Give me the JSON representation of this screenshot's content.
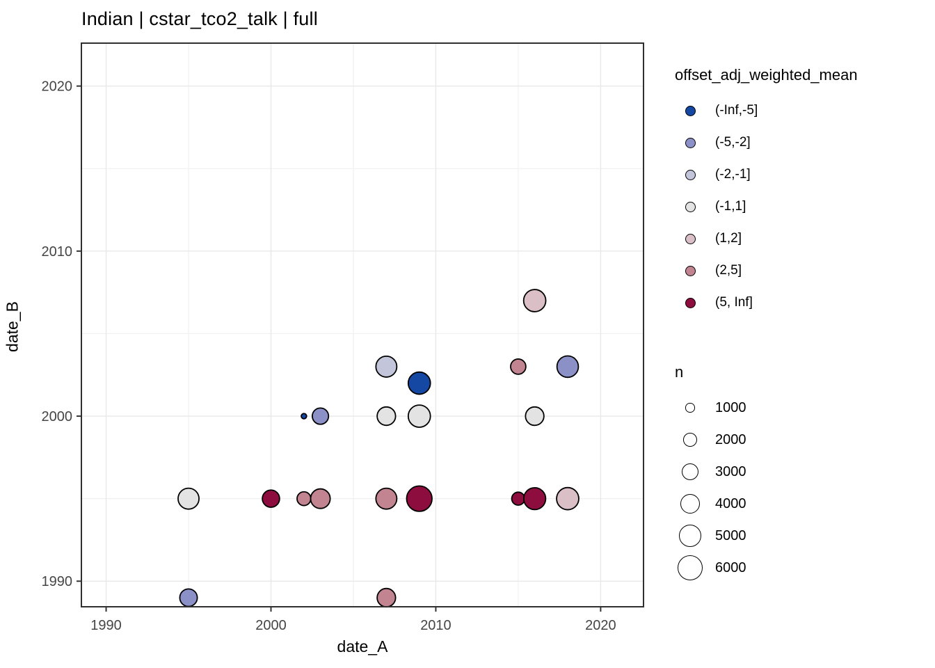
{
  "title": "Indian | cstar_tco2_talk | full",
  "axes": {
    "x": {
      "label": "date_A",
      "major_ticks": [
        1990,
        2000,
        2010,
        2020
      ],
      "minor_ticks": [
        1995,
        2005,
        2015
      ],
      "domain": [
        1988.5,
        2022.6
      ]
    },
    "y": {
      "label": "date_B",
      "major_ticks": [
        1990,
        2000,
        2010,
        2020
      ],
      "minor_ticks": [
        1995,
        2005,
        2015
      ],
      "domain": [
        1988.45,
        2022.6
      ]
    }
  },
  "colors": {
    "background": "#ffffff",
    "panel_border": "#2f2f2f",
    "grid_major": "#e8e8e8",
    "grid_minor": "#f0f0f0",
    "tick_mark": "#333333",
    "tick_label": "#454545",
    "point_stroke": "#000000",
    "palette": {
      "(-Inf,-5]": "#1548a2",
      "(-5,-2]": "#8b90c6",
      "(-2,-1]": "#c3c6db",
      "(-1,1]": "#e4e3e3",
      "(1,2]": "#dbbfc7",
      "(2,5]": "#c28490",
      "(5, Inf]": "#8d0d3e"
    }
  },
  "legend_color": {
    "title": "offset_adj_weighted_mean",
    "items": [
      {
        "label": "(-Inf,-5]",
        "color": "#1548a2"
      },
      {
        "label": "(-5,-2]",
        "color": "#8b90c6"
      },
      {
        "label": "(-2,-1]",
        "color": "#c3c6db"
      },
      {
        "label": "(-1,1]",
        "color": "#e4e3e3"
      },
      {
        "label": "(1,2]",
        "color": "#dbbfc7"
      },
      {
        "label": "(2,5]",
        "color": "#c28490"
      },
      {
        "label": "(5, Inf]",
        "color": "#8d0d3e"
      }
    ]
  },
  "legend_size": {
    "title": "n",
    "items": [
      {
        "label": "1000",
        "n": 1000
      },
      {
        "label": "2000",
        "n": 2000
      },
      {
        "label": "3000",
        "n": 3000
      },
      {
        "label": "4000",
        "n": 4000
      },
      {
        "label": "5000",
        "n": 5000
      },
      {
        "label": "6000",
        "n": 6000
      }
    ]
  },
  "chart_data": {
    "type": "scatter",
    "title": "Indian | cstar_tco2_talk | full",
    "xlabel": "date_A",
    "ylabel": "date_B",
    "x_domain": [
      1988.5,
      2022.6
    ],
    "y_domain": [
      1988.45,
      2022.6
    ],
    "x_ticks": [
      1990,
      2000,
      2010,
      2020
    ],
    "y_ticks": [
      1990,
      2000,
      2010,
      2020
    ],
    "grid": true,
    "legend_position": "right",
    "color_variable": "offset_adj_weighted_mean",
    "size_variable": "n",
    "points": [
      {
        "date_A": 1995,
        "date_B": 1989,
        "n": 3100,
        "offset_bin": "(-5,-2]"
      },
      {
        "date_A": 2007,
        "date_B": 1989,
        "n": 3400,
        "offset_bin": "(2,5]"
      },
      {
        "date_A": 1995,
        "date_B": 1995,
        "n": 4300,
        "offset_bin": "(-1,1]"
      },
      {
        "date_A": 2000,
        "date_B": 1995,
        "n": 3000,
        "offset_bin": "(5, Inf]"
      },
      {
        "date_A": 2002,
        "date_B": 1995,
        "n": 2000,
        "offset_bin": "(2,5]"
      },
      {
        "date_A": 2003,
        "date_B": 1995,
        "n": 3800,
        "offset_bin": "(2,5]"
      },
      {
        "date_A": 2007,
        "date_B": 1995,
        "n": 4300,
        "offset_bin": "(2,5]"
      },
      {
        "date_A": 2009,
        "date_B": 1995,
        "n": 6200,
        "offset_bin": "(5, Inf]"
      },
      {
        "date_A": 2015,
        "date_B": 1995,
        "n": 1800,
        "offset_bin": "(5, Inf]"
      },
      {
        "date_A": 2016,
        "date_B": 1995,
        "n": 4700,
        "offset_bin": "(5, Inf]"
      },
      {
        "date_A": 2018,
        "date_B": 1995,
        "n": 4800,
        "offset_bin": "(1,2]"
      },
      {
        "date_A": 2002,
        "date_B": 2000,
        "n": 400,
        "offset_bin": "(-Inf,-5]"
      },
      {
        "date_A": 2003,
        "date_B": 2000,
        "n": 2700,
        "offset_bin": "(-5,-2]"
      },
      {
        "date_A": 2007,
        "date_B": 2000,
        "n": 3400,
        "offset_bin": "(-1,1]"
      },
      {
        "date_A": 2009,
        "date_B": 2000,
        "n": 4800,
        "offset_bin": "(-1,1]"
      },
      {
        "date_A": 2016,
        "date_B": 2000,
        "n": 3400,
        "offset_bin": "(-1,1]"
      },
      {
        "date_A": 2009,
        "date_B": 2002,
        "n": 4800,
        "offset_bin": "(-Inf,-5]"
      },
      {
        "date_A": 2007,
        "date_B": 2003,
        "n": 4300,
        "offset_bin": "(-2,-1]"
      },
      {
        "date_A": 2015,
        "date_B": 2003,
        "n": 2400,
        "offset_bin": "(2,5]"
      },
      {
        "date_A": 2018,
        "date_B": 2003,
        "n": 4500,
        "offset_bin": "(-5,-2]"
      },
      {
        "date_A": 2016,
        "date_B": 2007,
        "n": 4800,
        "offset_bin": "(1,2]"
      }
    ]
  }
}
